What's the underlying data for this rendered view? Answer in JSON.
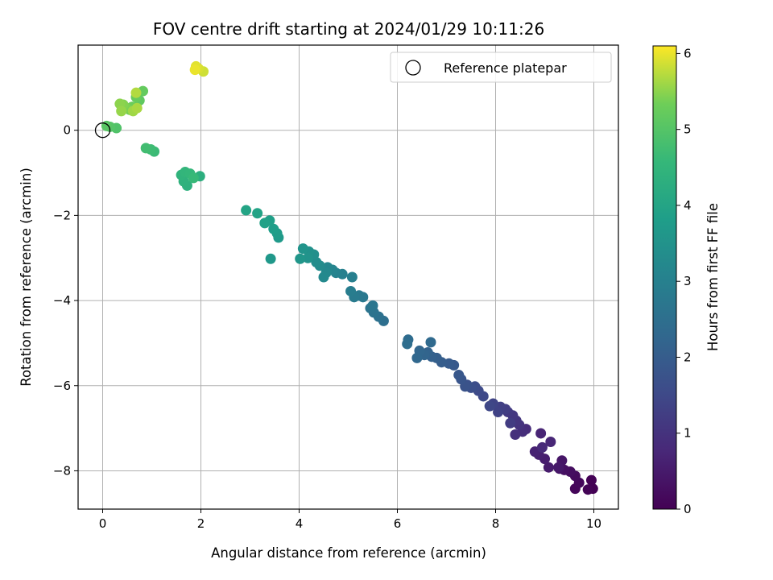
{
  "chart_data": {
    "type": "scatter",
    "title": "FOV centre drift starting at 2024/01/29 10:11:26",
    "xlabel": "Angular distance from reference (arcmin)",
    "ylabel": "Rotation from reference (arcmin)",
    "xlim": [
      -0.5,
      10.5
    ],
    "ylim": [
      -8.9,
      2.0
    ],
    "xticks": [
      0,
      2,
      4,
      6,
      8,
      10
    ],
    "xtick_labels": [
      "0",
      "2",
      "4",
      "6",
      "8",
      "10"
    ],
    "yticks": [
      0,
      -2,
      -4,
      -6,
      -8
    ],
    "ytick_labels": [
      "0",
      "−2",
      "−4",
      "−6",
      "−8"
    ],
    "grid": true,
    "colormap": "viridis",
    "colorbar": {
      "label": "Hours from first FF file",
      "range": [
        0,
        6.1
      ],
      "ticks": [
        0,
        1,
        2,
        3,
        4,
        5,
        6
      ],
      "tick_labels": [
        "0",
        "1",
        "2",
        "3",
        "4",
        "5",
        "6"
      ]
    },
    "legend": {
      "position": "top-right",
      "entries": [
        "Reference platepar"
      ]
    },
    "reference_point": {
      "x": 0,
      "y": 0
    },
    "points": [
      [
        9.98,
        -8.42,
        0.0
      ],
      [
        9.95,
        -8.22,
        0.02
      ],
      [
        9.88,
        -8.44,
        0.05
      ],
      [
        9.62,
        -8.42,
        0.1
      ],
      [
        9.7,
        -8.28,
        0.14
      ],
      [
        9.62,
        -8.12,
        0.2
      ],
      [
        9.52,
        -8.02,
        0.25
      ],
      [
        9.4,
        -7.98,
        0.3
      ],
      [
        9.3,
        -7.95,
        0.35
      ],
      [
        9.35,
        -7.76,
        0.4
      ],
      [
        9.28,
        -7.92,
        0.44
      ],
      [
        9.08,
        -7.92,
        0.5
      ],
      [
        9.0,
        -7.72,
        0.55
      ],
      [
        8.88,
        -7.62,
        0.6
      ],
      [
        8.8,
        -7.55,
        0.65
      ],
      [
        8.92,
        -7.12,
        0.7
      ],
      [
        9.12,
        -7.32,
        0.75
      ],
      [
        8.95,
        -7.45,
        0.8
      ],
      [
        8.62,
        -7.02,
        0.85
      ],
      [
        8.55,
        -7.08,
        0.9
      ],
      [
        8.4,
        -7.15,
        0.95
      ],
      [
        8.48,
        -6.92,
        1.0
      ],
      [
        8.42,
        -6.82,
        1.05
      ],
      [
        8.35,
        -6.7,
        1.1
      ],
      [
        8.25,
        -6.62,
        1.15
      ],
      [
        8.3,
        -6.88,
        1.2
      ],
      [
        8.2,
        -6.55,
        1.25
      ],
      [
        8.1,
        -6.5,
        1.3
      ],
      [
        8.05,
        -6.62,
        1.35
      ],
      [
        7.95,
        -6.42,
        1.4
      ],
      [
        7.88,
        -6.48,
        1.45
      ],
      [
        7.75,
        -6.25,
        1.5
      ],
      [
        7.65,
        -6.12,
        1.55
      ],
      [
        7.58,
        -6.02,
        1.6
      ],
      [
        7.5,
        -6.05,
        1.65
      ],
      [
        7.42,
        -5.98,
        1.7
      ],
      [
        7.38,
        -6.02,
        1.75
      ],
      [
        7.3,
        -5.85,
        1.8
      ],
      [
        7.25,
        -5.75,
        1.85
      ],
      [
        7.15,
        -5.52,
        1.9
      ],
      [
        7.05,
        -5.48,
        1.95
      ],
      [
        6.9,
        -5.45,
        2.0
      ],
      [
        6.8,
        -5.35,
        2.05
      ],
      [
        6.7,
        -5.32,
        2.1
      ],
      [
        6.62,
        -5.22,
        2.15
      ],
      [
        6.55,
        -5.28,
        2.2
      ],
      [
        6.45,
        -5.18,
        2.25
      ],
      [
        6.4,
        -5.35,
        2.3
      ],
      [
        6.68,
        -4.98,
        2.35
      ],
      [
        6.22,
        -4.92,
        2.4
      ],
      [
        6.2,
        -5.02,
        2.45
      ],
      [
        5.72,
        -4.48,
        2.5
      ],
      [
        5.62,
        -4.38,
        2.55
      ],
      [
        5.52,
        -4.28,
        2.6
      ],
      [
        5.45,
        -4.18,
        2.65
      ],
      [
        5.5,
        -4.12,
        2.7
      ],
      [
        5.3,
        -3.92,
        2.75
      ],
      [
        5.22,
        -3.88,
        2.8
      ],
      [
        5.12,
        -3.92,
        2.85
      ],
      [
        5.05,
        -3.78,
        2.9
      ],
      [
        5.08,
        -3.45,
        2.95
      ],
      [
        4.88,
        -3.38,
        3.0
      ],
      [
        4.75,
        -3.35,
        3.05
      ],
      [
        4.68,
        -3.28,
        3.1
      ],
      [
        4.58,
        -3.22,
        3.15
      ],
      [
        4.55,
        -3.35,
        3.2
      ],
      [
        4.5,
        -3.45,
        3.25
      ],
      [
        4.42,
        -3.18,
        3.3
      ],
      [
        4.35,
        -3.1,
        3.35
      ],
      [
        4.3,
        -2.92,
        3.4
      ],
      [
        4.2,
        -2.85,
        3.45
      ],
      [
        4.18,
        -3.0,
        3.5
      ],
      [
        4.08,
        -2.78,
        3.55
      ],
      [
        4.02,
        -3.02,
        3.6
      ],
      [
        3.42,
        -3.02,
        3.65
      ],
      [
        3.58,
        -2.52,
        3.7
      ],
      [
        3.55,
        -2.42,
        3.75
      ],
      [
        3.48,
        -2.32,
        3.8
      ],
      [
        3.4,
        -2.12,
        3.85
      ],
      [
        3.3,
        -2.18,
        3.9
      ],
      [
        3.15,
        -1.95,
        3.95
      ],
      [
        2.92,
        -1.88,
        4.0
      ],
      [
        1.98,
        -1.08,
        4.3
      ],
      [
        1.72,
        -1.3,
        4.35
      ],
      [
        1.65,
        -1.2,
        4.4
      ],
      [
        1.6,
        -1.05,
        4.45
      ],
      [
        1.68,
        -0.98,
        4.5
      ],
      [
        1.78,
        -1.02,
        4.55
      ],
      [
        1.85,
        -1.12,
        4.6
      ],
      [
        1.05,
        -0.5,
        4.65
      ],
      [
        0.98,
        -0.45,
        4.7
      ],
      [
        0.88,
        -0.42,
        4.75
      ],
      [
        0.28,
        0.05,
        4.95
      ],
      [
        0.15,
        0.08,
        5.0
      ],
      [
        0.08,
        0.1,
        5.05
      ],
      [
        0.75,
        0.7,
        5.15
      ],
      [
        0.82,
        0.92,
        5.2
      ],
      [
        0.68,
        0.78,
        5.25
      ],
      [
        0.6,
        0.55,
        5.3
      ],
      [
        0.55,
        0.48,
        5.35
      ],
      [
        0.48,
        0.52,
        5.4
      ],
      [
        0.42,
        0.6,
        5.45
      ],
      [
        0.35,
        0.62,
        5.5
      ],
      [
        0.38,
        0.45,
        5.55
      ],
      [
        0.62,
        0.45,
        5.6
      ],
      [
        0.7,
        0.52,
        5.65
      ],
      [
        0.68,
        0.88,
        5.7
      ],
      [
        2.05,
        1.38,
        5.85
      ],
      [
        1.95,
        1.45,
        5.9
      ],
      [
        1.9,
        1.5,
        5.95
      ],
      [
        1.88,
        1.42,
        6.0
      ]
    ]
  }
}
